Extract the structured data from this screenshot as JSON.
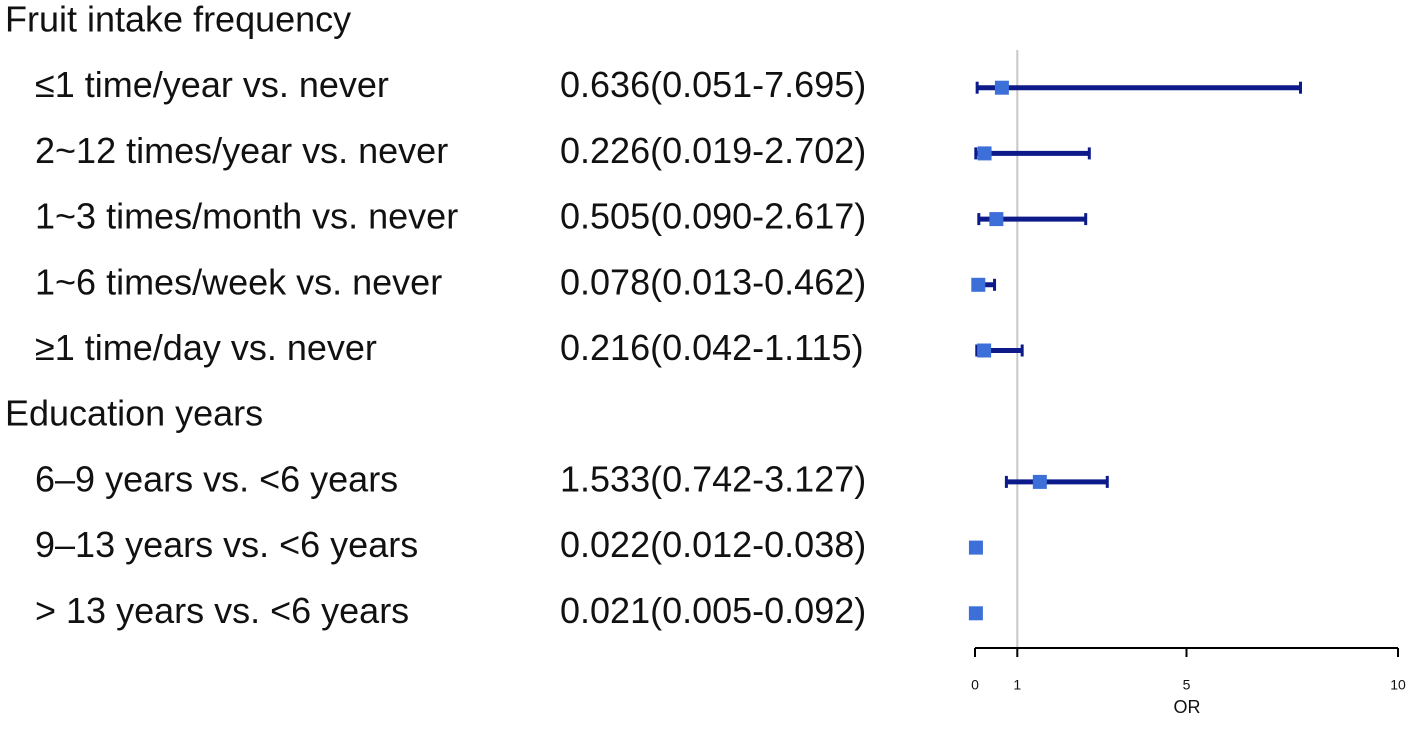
{
  "chart_data": {
    "type": "forest",
    "groups": [
      {
        "name": "Fruit intake frequency",
        "categories": [
          "≤1 time/year vs. never",
          "2~12 times/year vs. never",
          "1~3 times/month vs. never",
          "1~6 times/week vs. never",
          "≥1 time/day vs. never"
        ],
        "values": [
          0.636,
          0.226,
          0.505,
          0.078,
          0.216
        ],
        "lower": [
          0.051,
          0.019,
          0.09,
          0.013,
          0.042
        ],
        "upper": [
          7.695,
          2.702,
          2.617,
          0.462,
          1.115
        ],
        "value_labels": [
          "0.636(0.051-7.695)",
          "0.226(0.019-2.702)",
          "0.505(0.090-2.617)",
          "0.078(0.013-0.462)",
          "0.216(0.042-1.115)"
        ]
      },
      {
        "name": "Education years",
        "categories": [
          "6–9 years vs. <6 years",
          "9–13 years vs. <6 years",
          "> 13 years vs. <6 years"
        ],
        "values": [
          1.533,
          0.022,
          0.021
        ],
        "lower": [
          0.742,
          0.012,
          0.005
        ],
        "upper": [
          3.127,
          0.038,
          0.092
        ],
        "value_labels": [
          "1.533(0.742-3.127)",
          "0.022(0.012-0.038)",
          "0.021(0.005-0.092)"
        ]
      }
    ],
    "xlabel": "OR",
    "xlim": [
      0,
      10
    ],
    "xticks": [
      0,
      1,
      5,
      10
    ],
    "reference_line": 1,
    "color": "#0d1a8a",
    "point_color": "#3d6fd8"
  }
}
